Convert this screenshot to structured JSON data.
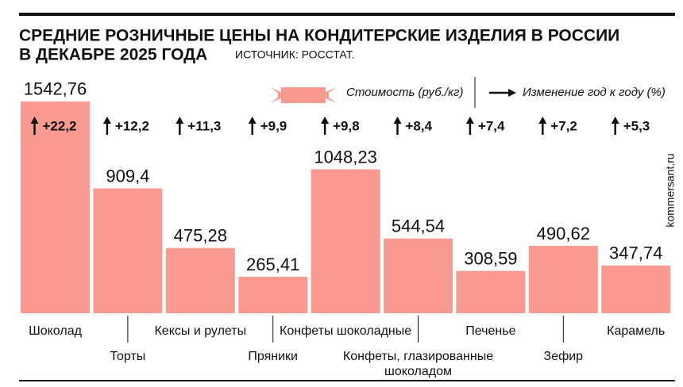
{
  "chart_data": {
    "type": "bar",
    "title": "СРЕДНИЕ РОЗНИЧНЫЕ ЦЕНЫ НА КОНДИТЕРСКИЕ ИЗДЕЛИЯ В РОССИИ",
    "subtitle": "В ДЕКАБРЕ 2025 ГОДА",
    "source": "ИСТОЧНИК: РОССТАТ.",
    "watermark": "kommersant.ru",
    "categories": [
      "Шоколад",
      "Торты",
      "Кексы и рулеты",
      "Пряники",
      "Конфеты шоколадные",
      "Конфеты, глазированные шоколадом",
      "Печенье",
      "Зефир",
      "Карамель"
    ],
    "series": [
      {
        "name": "Стоимость (руб./кг)",
        "color": "#f99a90",
        "values": [
          1542.76,
          909.4,
          475.28,
          265.41,
          1048.23,
          544.54,
          308.59,
          490.62,
          347.74
        ],
        "value_labels": [
          "1542,76",
          "909,4",
          "475,28",
          "265,41",
          "1048,23",
          "544,54",
          "308,59",
          "490,62",
          "347,74"
        ]
      },
      {
        "name": "Изменение год к году (%)",
        "color": "#111111",
        "values": [
          22.2,
          12.2,
          11.3,
          9.9,
          9.8,
          8.4,
          7.4,
          7.2,
          5.3
        ],
        "value_labels": [
          "+22,2",
          "+12,2",
          "+11,3",
          "+9,9",
          "+9,8",
          "+8,4",
          "+7,4",
          "+7,2",
          "+5,3"
        ]
      }
    ],
    "ylim": [
      0,
      1600
    ]
  }
}
